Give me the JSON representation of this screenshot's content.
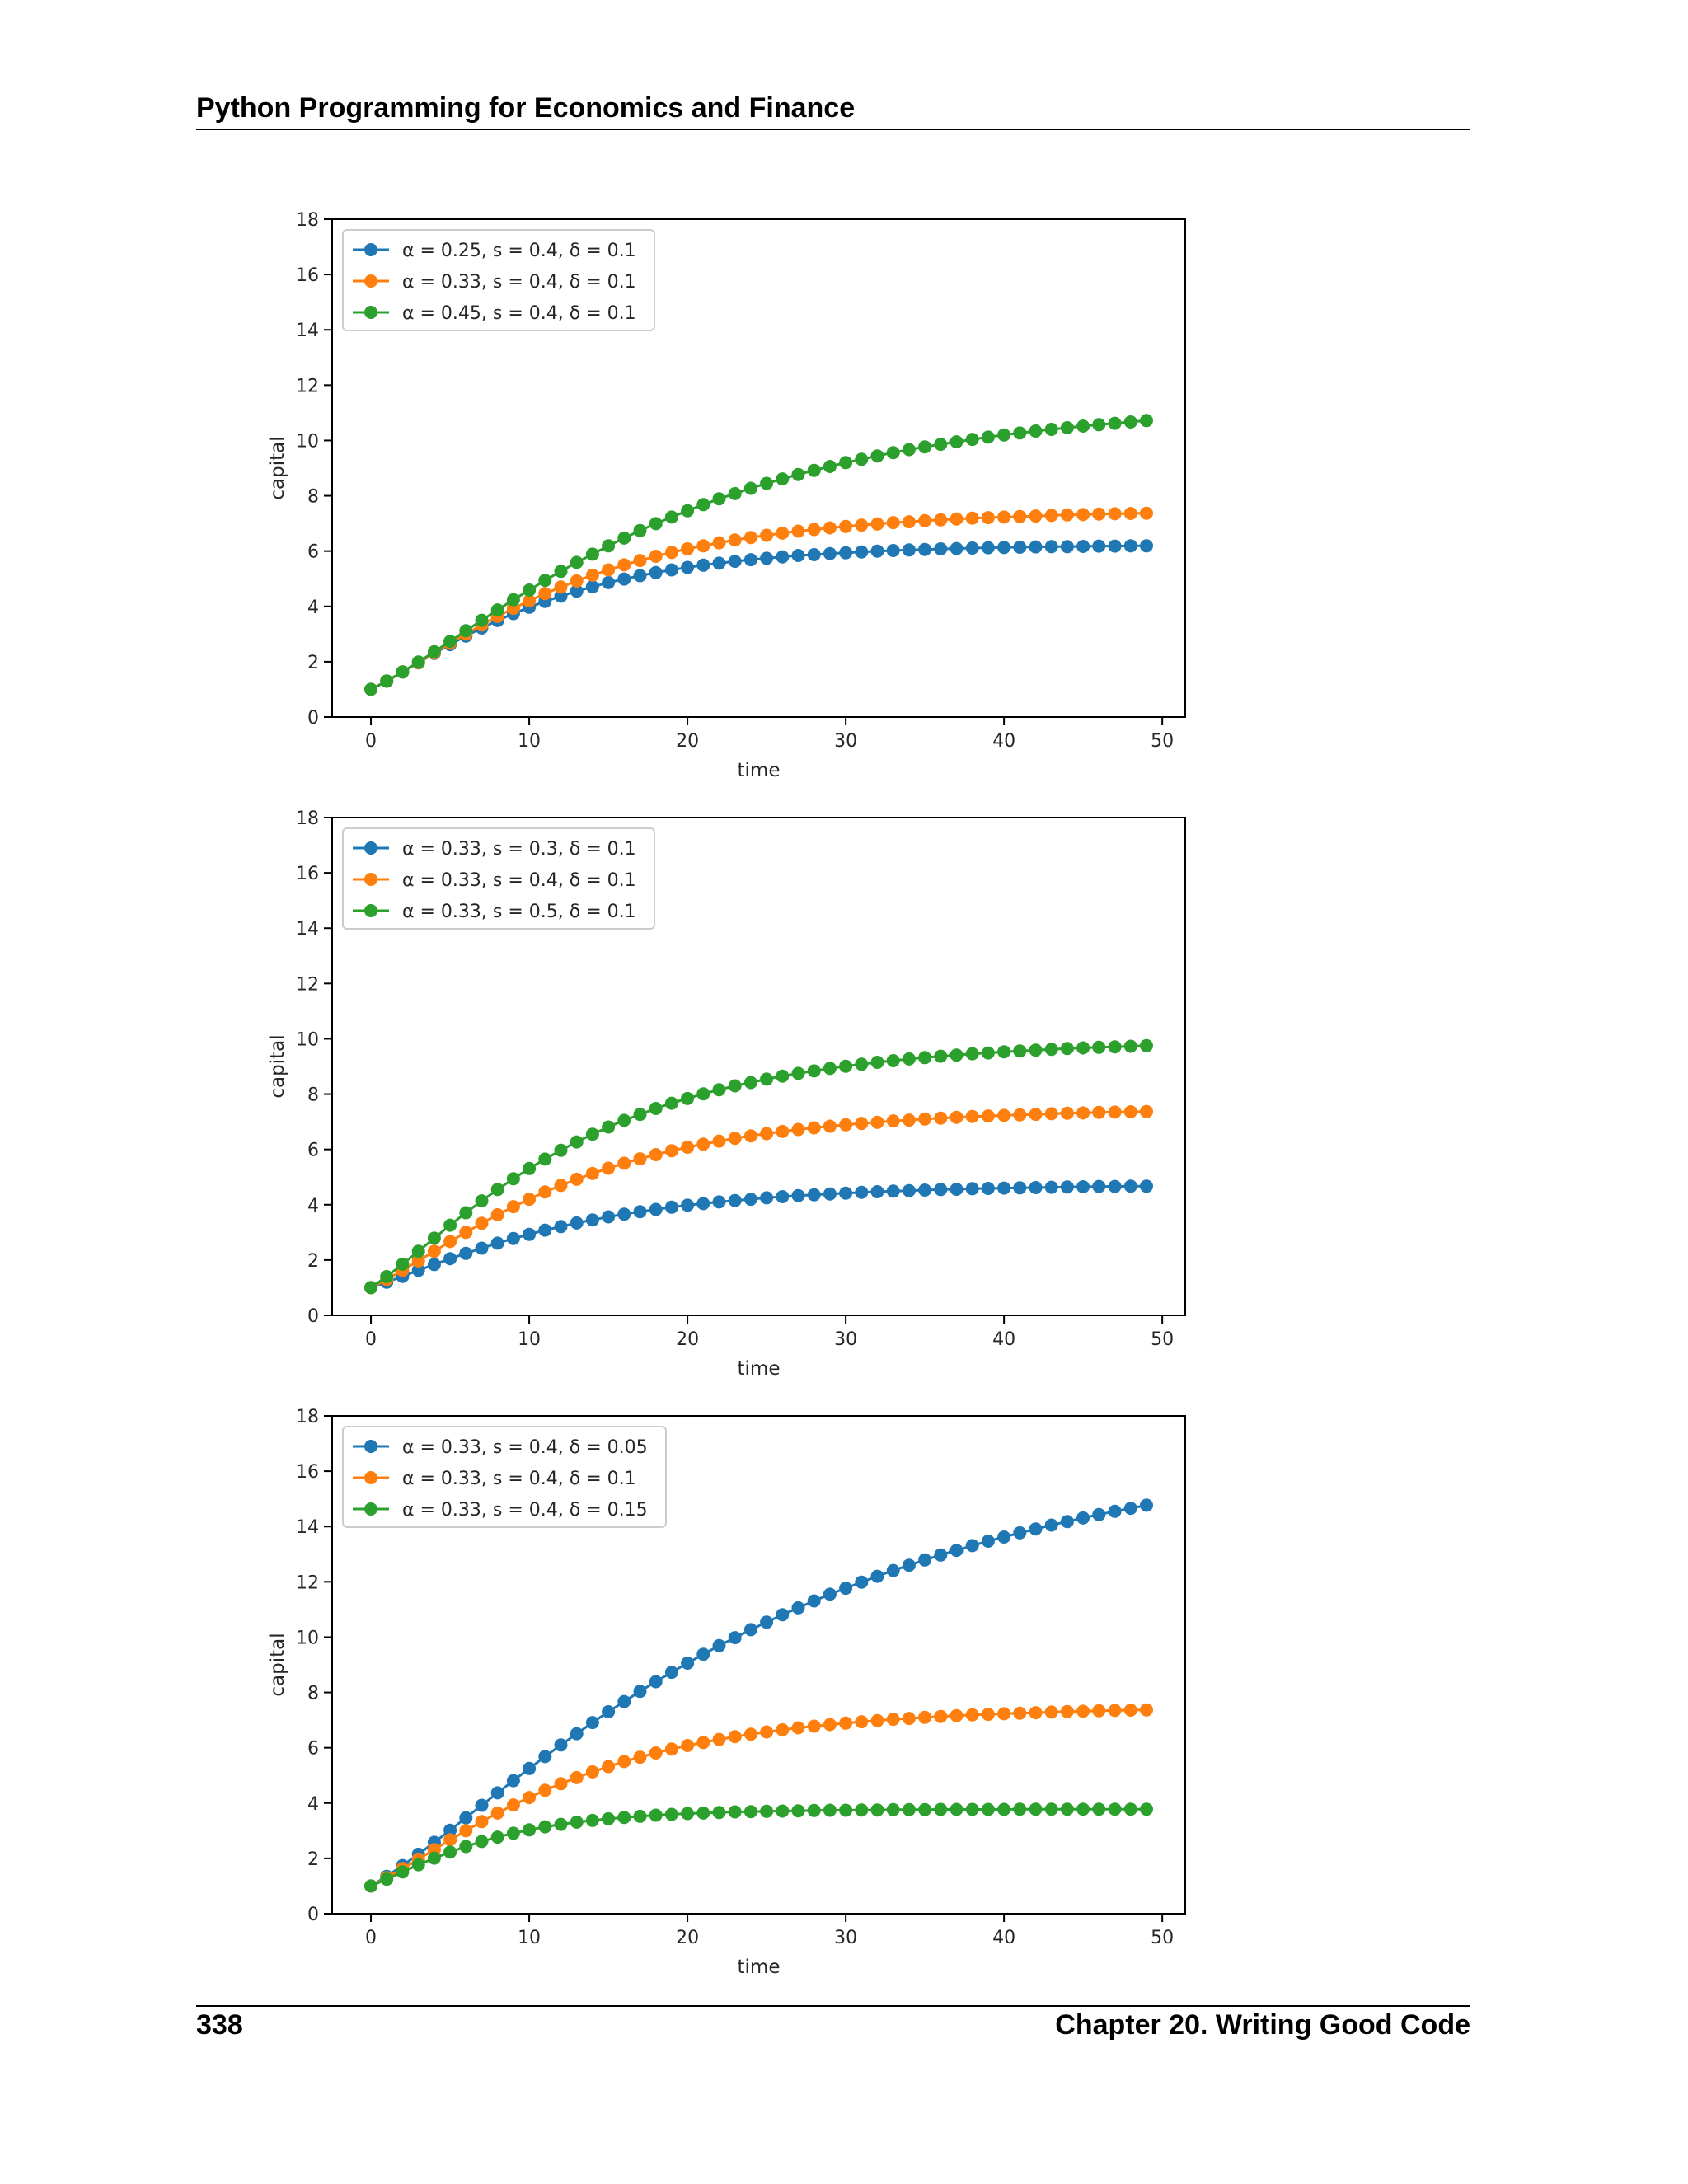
{
  "page": {
    "header_title": "Python Programming for Economics and Finance",
    "page_number": "338",
    "chapter_label": "Chapter 20.  Writing Good Code"
  },
  "colors": {
    "series_1": "#1f77b4",
    "series_2": "#ff7f0e",
    "series_3": "#2ca02c"
  },
  "chart_data": [
    {
      "type": "line",
      "marker": "circle",
      "xlabel": "time",
      "ylabel": "capital",
      "xlim": [
        -2.45,
        51.45
      ],
      "ylim": [
        0,
        18
      ],
      "xticks": [
        0,
        10,
        20,
        30,
        40,
        50
      ],
      "yticks": [
        0,
        2,
        4,
        6,
        8,
        10,
        12,
        14,
        16,
        18
      ],
      "legend_position": "upper left",
      "grid": false,
      "x": [
        0,
        1,
        2,
        3,
        4,
        5,
        6,
        7,
        8,
        9,
        10,
        11,
        12,
        13,
        14,
        15,
        16,
        17,
        18,
        19,
        20,
        21,
        22,
        23,
        24,
        25,
        26,
        27,
        28,
        29,
        30,
        31,
        32,
        33,
        34,
        35,
        36,
        37,
        38,
        39,
        40,
        41,
        42,
        43,
        44,
        45,
        46,
        47,
        48,
        49
      ],
      "series": [
        {
          "name": "α = 0.25,  s = 0.4,  δ = 0.1",
          "values": [
            1.0,
            1.3,
            1.63,
            1.96,
            2.3,
            2.62,
            2.93,
            3.22,
            3.49,
            3.74,
            3.97,
            4.18,
            4.37,
            4.55,
            4.71,
            4.86,
            4.99,
            5.11,
            5.22,
            5.32,
            5.41,
            5.49,
            5.56,
            5.63,
            5.69,
            5.74,
            5.79,
            5.84,
            5.87,
            5.91,
            5.94,
            5.97,
            6.0,
            6.02,
            6.04,
            6.06,
            6.08,
            6.09,
            6.11,
            6.12,
            6.13,
            6.14,
            6.15,
            6.16,
            6.16,
            6.17,
            6.18,
            6.18,
            6.19,
            6.19
          ]
        },
        {
          "name": "α = 0.33,  s = 0.4,  δ = 0.1",
          "values": [
            1.0,
            1.3,
            1.63,
            1.97,
            2.32,
            2.67,
            3.0,
            3.33,
            3.64,
            3.93,
            4.2,
            4.46,
            4.7,
            4.92,
            5.13,
            5.32,
            5.5,
            5.66,
            5.81,
            5.95,
            6.08,
            6.19,
            6.3,
            6.4,
            6.49,
            6.57,
            6.65,
            6.72,
            6.78,
            6.84,
            6.89,
            6.94,
            6.98,
            7.03,
            7.06,
            7.1,
            7.13,
            7.16,
            7.19,
            7.21,
            7.23,
            7.25,
            7.27,
            7.29,
            7.31,
            7.32,
            7.34,
            7.35,
            7.36,
            7.37
          ]
        },
        {
          "name": "α = 0.45,  s = 0.4,  δ = 0.1",
          "values": [
            1.0,
            1.3,
            1.63,
            1.99,
            2.36,
            2.74,
            3.12,
            3.5,
            3.87,
            4.24,
            4.59,
            4.94,
            5.27,
            5.59,
            5.89,
            6.19,
            6.47,
            6.74,
            6.99,
            7.23,
            7.46,
            7.68,
            7.89,
            8.08,
            8.27,
            8.45,
            8.61,
            8.77,
            8.92,
            9.06,
            9.2,
            9.32,
            9.44,
            9.56,
            9.67,
            9.77,
            9.86,
            9.95,
            10.04,
            10.12,
            10.2,
            10.27,
            10.34,
            10.4,
            10.46,
            10.52,
            10.57,
            10.62,
            10.67,
            10.72
          ]
        }
      ]
    },
    {
      "type": "line",
      "marker": "circle",
      "xlabel": "time",
      "ylabel": "capital",
      "xlim": [
        -2.45,
        51.45
      ],
      "ylim": [
        0,
        18
      ],
      "xticks": [
        0,
        10,
        20,
        30,
        40,
        50
      ],
      "yticks": [
        0,
        2,
        4,
        6,
        8,
        10,
        12,
        14,
        16,
        18
      ],
      "legend_position": "upper left",
      "grid": false,
      "x": [
        0,
        1,
        2,
        3,
        4,
        5,
        6,
        7,
        8,
        9,
        10,
        11,
        12,
        13,
        14,
        15,
        16,
        17,
        18,
        19,
        20,
        21,
        22,
        23,
        24,
        25,
        26,
        27,
        28,
        29,
        30,
        31,
        32,
        33,
        34,
        35,
        36,
        37,
        38,
        39,
        40,
        41,
        42,
        43,
        44,
        45,
        46,
        47,
        48,
        49
      ],
      "series": [
        {
          "name": "α = 0.33,  s = 0.3,  δ = 0.1",
          "values": [
            1.0,
            1.2,
            1.41,
            1.63,
            1.84,
            2.05,
            2.24,
            2.43,
            2.61,
            2.78,
            2.93,
            3.08,
            3.21,
            3.34,
            3.45,
            3.56,
            3.66,
            3.75,
            3.83,
            3.91,
            3.98,
            4.04,
            4.1,
            4.15,
            4.2,
            4.25,
            4.29,
            4.33,
            4.36,
            4.39,
            4.42,
            4.45,
            4.47,
            4.49,
            4.51,
            4.53,
            4.55,
            4.56,
            4.58,
            4.59,
            4.6,
            4.61,
            4.62,
            4.63,
            4.64,
            4.65,
            4.66,
            4.66,
            4.67,
            4.67
          ]
        },
        {
          "name": "α = 0.33,  s = 0.4,  δ = 0.1",
          "values": [
            1.0,
            1.3,
            1.63,
            1.97,
            2.32,
            2.67,
            3.0,
            3.33,
            3.64,
            3.93,
            4.2,
            4.46,
            4.7,
            4.92,
            5.13,
            5.32,
            5.5,
            5.66,
            5.81,
            5.95,
            6.08,
            6.19,
            6.3,
            6.4,
            6.49,
            6.57,
            6.65,
            6.72,
            6.78,
            6.84,
            6.89,
            6.94,
            6.98,
            7.03,
            7.06,
            7.1,
            7.13,
            7.16,
            7.19,
            7.21,
            7.23,
            7.25,
            7.27,
            7.29,
            7.31,
            7.32,
            7.34,
            7.35,
            7.36,
            7.37
          ]
        },
        {
          "name": "α = 0.33,  s = 0.5,  δ = 0.1",
          "values": [
            1.0,
            1.4,
            1.85,
            2.32,
            2.79,
            3.26,
            3.71,
            4.14,
            4.55,
            4.94,
            5.31,
            5.65,
            5.97,
            6.27,
            6.55,
            6.81,
            7.05,
            7.27,
            7.48,
            7.67,
            7.84,
            8.01,
            8.16,
            8.3,
            8.42,
            8.54,
            8.65,
            8.75,
            8.84,
            8.93,
            9.01,
            9.08,
            9.15,
            9.21,
            9.27,
            9.32,
            9.37,
            9.41,
            9.46,
            9.49,
            9.53,
            9.56,
            9.59,
            9.62,
            9.65,
            9.67,
            9.69,
            9.71,
            9.73,
            9.75
          ]
        }
      ]
    },
    {
      "type": "line",
      "marker": "circle",
      "xlabel": "time",
      "ylabel": "capital",
      "xlim": [
        -2.45,
        51.45
      ],
      "ylim": [
        0,
        18
      ],
      "xticks": [
        0,
        10,
        20,
        30,
        40,
        50
      ],
      "yticks": [
        0,
        2,
        4,
        6,
        8,
        10,
        12,
        14,
        16,
        18
      ],
      "legend_position": "upper left",
      "grid": false,
      "x": [
        0,
        1,
        2,
        3,
        4,
        5,
        6,
        7,
        8,
        9,
        10,
        11,
        12,
        13,
        14,
        15,
        16,
        17,
        18,
        19,
        20,
        21,
        22,
        23,
        24,
        25,
        26,
        27,
        28,
        29,
        30,
        31,
        32,
        33,
        34,
        35,
        36,
        37,
        38,
        39,
        40,
        41,
        42,
        43,
        44,
        45,
        46,
        47,
        48,
        49
      ],
      "series": [
        {
          "name": "α = 0.33,  s = 0.4,  δ = 0.05",
          "values": [
            1.0,
            1.35,
            1.74,
            2.15,
            2.58,
            3.02,
            3.47,
            3.92,
            4.37,
            4.81,
            5.25,
            5.68,
            6.1,
            6.51,
            6.91,
            7.3,
            7.67,
            8.04,
            8.39,
            8.73,
            9.06,
            9.38,
            9.69,
            9.98,
            10.27,
            10.54,
            10.81,
            11.06,
            11.31,
            11.55,
            11.77,
            11.99,
            12.2,
            12.41,
            12.6,
            12.79,
            12.97,
            13.14,
            13.31,
            13.47,
            13.62,
            13.77,
            13.91,
            14.05,
            14.18,
            14.31,
            14.43,
            14.55,
            14.66,
            14.77
          ]
        },
        {
          "name": "α = 0.33,  s = 0.4,  δ = 0.1",
          "values": [
            1.0,
            1.3,
            1.63,
            1.97,
            2.32,
            2.67,
            3.0,
            3.33,
            3.64,
            3.93,
            4.2,
            4.46,
            4.7,
            4.92,
            5.13,
            5.32,
            5.5,
            5.66,
            5.81,
            5.95,
            6.08,
            6.19,
            6.3,
            6.4,
            6.49,
            6.57,
            6.65,
            6.72,
            6.78,
            6.84,
            6.89,
            6.94,
            6.98,
            7.03,
            7.06,
            7.1,
            7.13,
            7.16,
            7.19,
            7.21,
            7.23,
            7.25,
            7.27,
            7.29,
            7.31,
            7.32,
            7.34,
            7.35,
            7.36,
            7.37
          ]
        },
        {
          "name": "α = 0.33,  s = 0.4,  δ = 0.15",
          "values": [
            1.0,
            1.25,
            1.51,
            1.77,
            2.01,
            2.23,
            2.43,
            2.61,
            2.77,
            2.91,
            3.03,
            3.14,
            3.23,
            3.31,
            3.37,
            3.43,
            3.48,
            3.52,
            3.56,
            3.59,
            3.62,
            3.64,
            3.66,
            3.68,
            3.69,
            3.7,
            3.71,
            3.72,
            3.73,
            3.74,
            3.74,
            3.75,
            3.75,
            3.76,
            3.76,
            3.76,
            3.77,
            3.77,
            3.77,
            3.77,
            3.77,
            3.78,
            3.78,
            3.78,
            3.78,
            3.78,
            3.78,
            3.78,
            3.78,
            3.78
          ]
        }
      ]
    }
  ]
}
